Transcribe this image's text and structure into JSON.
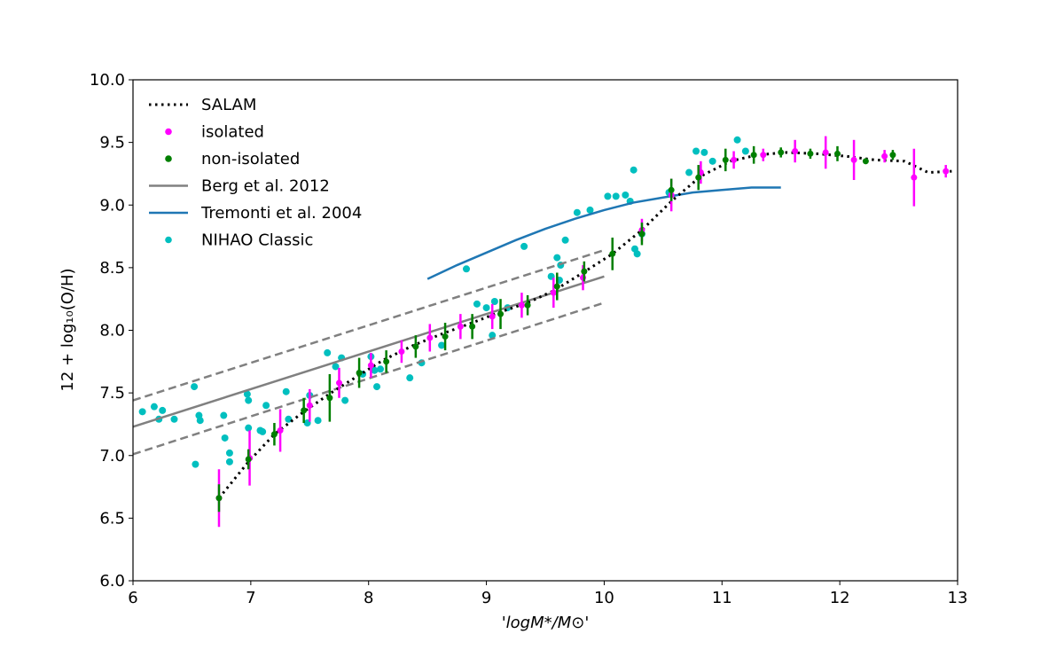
{
  "chart_data": {
    "type": "scatter",
    "xlabel": "'logM*/M⊙'",
    "ylabel": "12 + log₁₀(O/H)",
    "xlim": [
      6,
      13
    ],
    "ylim": [
      6.0,
      10.0
    ],
    "xticks": [
      6,
      7,
      8,
      9,
      10,
      11,
      12,
      13
    ],
    "xtick_labels": [
      "6",
      "7",
      "8",
      "9",
      "10",
      "11",
      "12",
      "13"
    ],
    "yticks": [
      6.0,
      6.5,
      7.0,
      7.5,
      8.0,
      8.5,
      9.0,
      9.5,
      10.0
    ],
    "ytick_labels": [
      "6.0",
      "6.5",
      "7.0",
      "7.5",
      "8.0",
      "8.5",
      "9.0",
      "9.5",
      "10.0"
    ],
    "grid": false,
    "legend_position": "top-left",
    "legend": [
      {
        "label": "SALAM",
        "style": "dotted-line",
        "color": "#000000"
      },
      {
        "label": "isolated",
        "style": "point",
        "color": "#ff00ff"
      },
      {
        "label": "non-isolated",
        "style": "point",
        "color": "#007f00"
      },
      {
        "label": "Berg et al. 2012",
        "style": "line",
        "color": "#808080"
      },
      {
        "label": "Tremonti et al. 2004",
        "style": "line",
        "color": "#1f77b4"
      },
      {
        "label": "NIHAO Classic",
        "style": "point",
        "color": "#00bfbf"
      }
    ],
    "series": [
      {
        "name": "SALAM",
        "kind": "dotted-line",
        "color": "#000000",
        "x": [
          6.73,
          6.98,
          7.2,
          7.45,
          7.68,
          7.9,
          8.12,
          8.38,
          8.62,
          8.88,
          9.1,
          9.35,
          9.58,
          9.82,
          10.07,
          10.32,
          10.57,
          10.82,
          11.07,
          11.3,
          11.55,
          11.8,
          12.05,
          12.3,
          12.55,
          12.75,
          12.95
        ],
        "y": [
          6.66,
          6.95,
          7.17,
          7.35,
          7.5,
          7.63,
          7.76,
          7.88,
          7.97,
          8.06,
          8.14,
          8.22,
          8.32,
          8.46,
          8.61,
          8.8,
          9.03,
          9.23,
          9.35,
          9.4,
          9.42,
          9.41,
          9.39,
          9.36,
          9.35,
          9.26,
          9.27
        ]
      },
      {
        "name": "isolated",
        "kind": "errorbar-points",
        "color": "#ff00ff",
        "x": [
          6.73,
          6.99,
          7.25,
          7.5,
          7.75,
          8.02,
          8.28,
          8.52,
          8.78,
          9.05,
          9.3,
          9.57,
          9.82,
          10.32,
          10.57,
          10.82,
          11.1,
          11.35,
          11.62,
          11.88,
          12.12,
          12.38,
          12.63,
          12.9
        ],
        "y": [
          6.66,
          6.98,
          7.2,
          7.4,
          7.58,
          7.72,
          7.83,
          7.94,
          8.03,
          8.11,
          8.2,
          8.3,
          8.42,
          8.8,
          9.08,
          9.26,
          9.36,
          9.4,
          9.43,
          9.42,
          9.36,
          9.39,
          9.22,
          9.27
        ],
        "err": [
          0.23,
          0.22,
          0.17,
          0.13,
          0.12,
          0.1,
          0.09,
          0.11,
          0.1,
          0.1,
          0.1,
          0.12,
          0.1,
          0.09,
          0.13,
          0.09,
          0.07,
          0.05,
          0.09,
          0.13,
          0.16,
          0.05,
          0.23,
          0.05
        ]
      },
      {
        "name": "non-isolated",
        "kind": "errorbar-points",
        "color": "#007f00",
        "x": [
          6.73,
          6.98,
          7.2,
          7.45,
          7.67,
          7.92,
          8.15,
          8.4,
          8.65,
          8.88,
          9.12,
          9.35,
          9.6,
          9.83,
          10.07,
          10.32,
          10.57,
          10.8,
          11.03,
          11.27,
          11.5,
          11.75,
          11.98,
          12.22,
          12.45
        ],
        "y": [
          6.66,
          6.97,
          7.17,
          7.36,
          7.46,
          7.66,
          7.75,
          7.87,
          7.95,
          8.03,
          8.13,
          8.2,
          8.35,
          8.47,
          8.61,
          8.77,
          9.12,
          9.22,
          9.36,
          9.4,
          9.42,
          9.41,
          9.41,
          9.35,
          9.4
        ],
        "err": [
          0.11,
          0.08,
          0.09,
          0.1,
          0.19,
          0.12,
          0.09,
          0.09,
          0.11,
          0.1,
          0.12,
          0.08,
          0.11,
          0.08,
          0.13,
          0.09,
          0.09,
          0.1,
          0.09,
          0.07,
          0.04,
          0.04,
          0.06,
          0.02,
          0.04
        ]
      },
      {
        "name": "Berg et al. 2012",
        "kind": "line",
        "color": "#808080",
        "x": [
          6.0,
          10.0
        ],
        "y": [
          7.23,
          8.43
        ]
      },
      {
        "name": "Berg upper",
        "kind": "dashed-line",
        "color": "#808080",
        "x": [
          6.0,
          10.0
        ],
        "y": [
          7.44,
          8.64
        ]
      },
      {
        "name": "Berg lower",
        "kind": "dashed-line",
        "color": "#808080",
        "x": [
          6.0,
          10.0
        ],
        "y": [
          7.01,
          8.22
        ]
      },
      {
        "name": "Tremonti et al. 2004",
        "kind": "line",
        "color": "#1f77b4",
        "x": [
          8.5,
          8.75,
          9.0,
          9.25,
          9.5,
          9.75,
          10.0,
          10.25,
          10.5,
          10.75,
          11.0,
          11.25,
          11.5
        ],
        "y": [
          8.41,
          8.52,
          8.62,
          8.72,
          8.81,
          8.89,
          8.96,
          9.02,
          9.06,
          9.1,
          9.12,
          9.14,
          9.14
        ]
      },
      {
        "name": "NIHAO Classic",
        "kind": "points",
        "color": "#00bfbf",
        "x": [
          6.08,
          6.18,
          6.22,
          6.25,
          6.35,
          6.52,
          6.53,
          6.56,
          6.57,
          6.77,
          6.78,
          6.82,
          6.82,
          6.97,
          6.98,
          6.98,
          7.08,
          7.1,
          7.13,
          7.3,
          7.32,
          7.48,
          7.5,
          7.57,
          7.65,
          7.72,
          7.77,
          7.8,
          7.95,
          8.02,
          8.05,
          8.07,
          8.1,
          8.35,
          8.45,
          8.62,
          8.83,
          8.92,
          9.0,
          9.05,
          9.07,
          9.18,
          9.32,
          9.55,
          9.6,
          9.62,
          9.63,
          9.67,
          9.77,
          9.88,
          10.03,
          10.1,
          10.18,
          10.22,
          10.25,
          10.26,
          10.28,
          10.32,
          10.55,
          10.72,
          10.78,
          10.85,
          10.92,
          11.13,
          11.2
        ],
        "y": [
          7.35,
          7.39,
          7.29,
          7.36,
          7.29,
          7.55,
          6.93,
          7.32,
          7.28,
          7.32,
          7.14,
          7.02,
          6.95,
          7.49,
          7.44,
          7.22,
          7.2,
          7.19,
          7.4,
          7.51,
          7.29,
          7.26,
          7.48,
          7.28,
          7.82,
          7.71,
          7.78,
          7.44,
          7.65,
          7.79,
          7.68,
          7.55,
          7.69,
          7.62,
          7.74,
          7.88,
          8.49,
          8.21,
          8.18,
          7.96,
          8.23,
          8.18,
          8.67,
          8.43,
          8.58,
          8.4,
          8.52,
          8.72,
          8.94,
          8.96,
          9.07,
          9.07,
          9.08,
          9.03,
          9.28,
          8.65,
          8.61,
          8.77,
          9.1,
          9.26,
          9.43,
          9.42,
          9.35,
          9.52,
          9.43
        ]
      }
    ]
  }
}
